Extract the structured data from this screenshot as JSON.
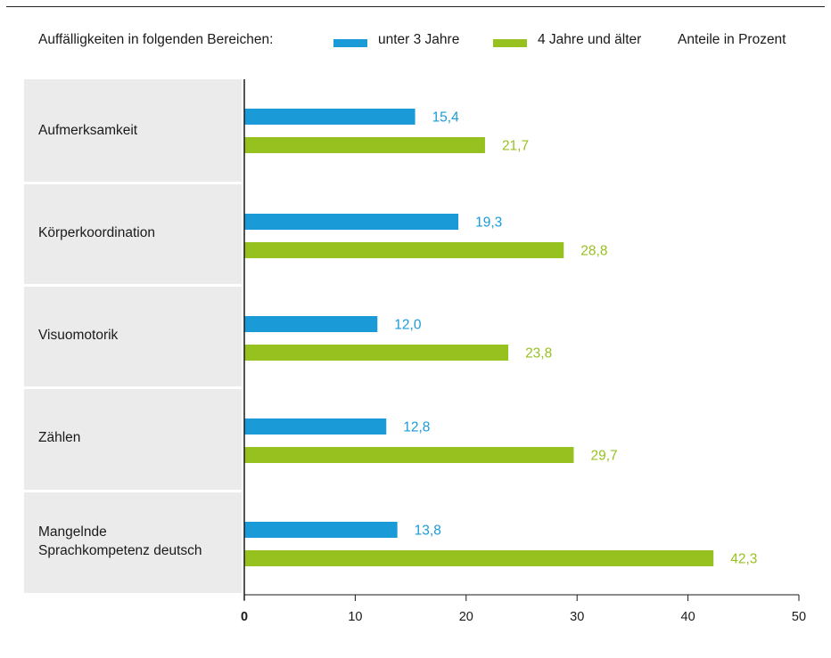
{
  "legend": {
    "title": "Auffälligkeiten in folgenden Bereichen:",
    "series_1": "unter 3 Jahre",
    "series_2": "4 Jahre und älter",
    "unit_note": "Anteile in Prozent"
  },
  "colors": {
    "series_1": "#1a9bd7",
    "series_2": "#97c11f",
    "band": "#ebebeb"
  },
  "chart_data": {
    "type": "bar",
    "orientation": "horizontal",
    "title": "",
    "xlabel": "",
    "ylabel": "",
    "categories": [
      "Aufmerksamkeit",
      "Körperkoordination",
      "Visuomotorik",
      "Zählen",
      "Mangelnde\nSprachkompetenz deutsch"
    ],
    "series": [
      {
        "name": "unter 3 Jahre",
        "values": [
          15.4,
          19.3,
          12.0,
          12.8,
          13.8
        ],
        "labels": [
          "15,4",
          "19,3",
          "12,0",
          "12,8",
          "13,8"
        ]
      },
      {
        "name": "4 Jahre und älter",
        "values": [
          21.7,
          28.8,
          23.8,
          29.7,
          42.3
        ],
        "labels": [
          "21,7",
          "28,8",
          "23,8",
          "29,7",
          "42,3"
        ]
      }
    ],
    "xlim": [
      0,
      50
    ],
    "xticks": [
      "0",
      "10",
      "20",
      "30",
      "40",
      "50"
    ],
    "grid": false,
    "legend_position": "top"
  }
}
